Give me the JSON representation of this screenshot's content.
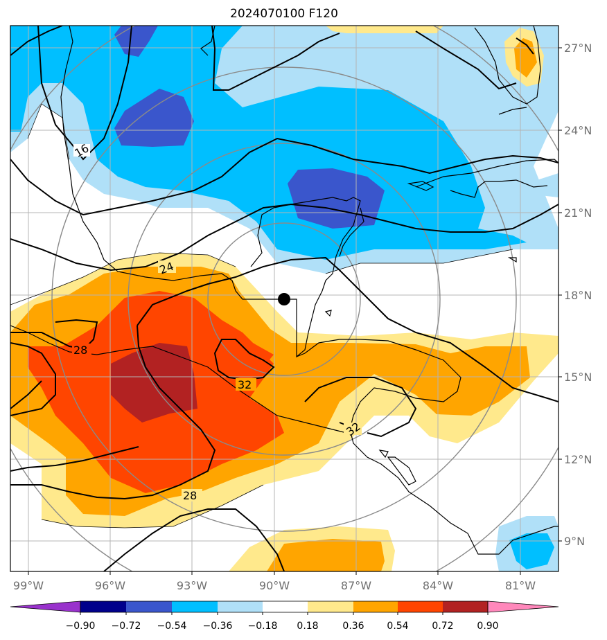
{
  "title": "2024070100 F120",
  "map": {
    "lon_labels": [
      "99°W",
      "96°W",
      "93°W",
      "90°W",
      "87°W",
      "84°W",
      "81°W"
    ],
    "lat_labels": [
      "27°N",
      "24°N",
      "21°N",
      "18°N",
      "15°N",
      "12°N",
      "9°N"
    ],
    "contour_labels": [
      "16",
      "24",
      "28",
      "32",
      "32",
      "28"
    ],
    "center_marker": "storm-center"
  },
  "colorbar": {
    "levels": [
      "−0.90",
      "−0.72",
      "−0.54",
      "−0.36",
      "−0.18",
      "0.18",
      "0.36",
      "0.54",
      "0.72",
      "0.90"
    ],
    "colors": [
      "#9932cc",
      "#00008b",
      "#3a56cc",
      "#00bfff",
      "#b0e0f8",
      "#ffffff",
      "#ffe98c",
      "#ffa500",
      "#ff4500",
      "#b22222",
      "#ff88bb"
    ]
  },
  "palette": {
    "neg_strong": "#3a56cc",
    "neg_mid": "#00bfff",
    "neg_weak": "#b0e0f8",
    "pos_weak": "#ffe98c",
    "pos_mid": "#ffa500",
    "pos_strong": "#ff4500",
    "pos_max": "#b22222"
  }
}
